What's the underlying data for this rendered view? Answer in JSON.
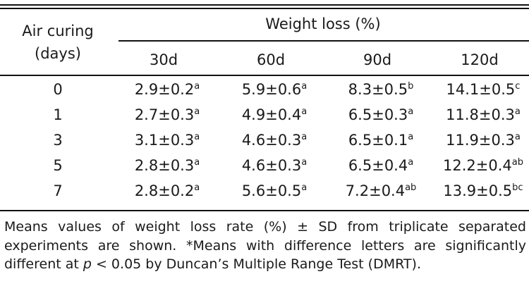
{
  "table": {
    "row_header": [
      "Air curing",
      "(days)"
    ],
    "group_header": "Weight loss (%)",
    "columns": [
      "30d",
      "60d",
      "90d",
      "120d"
    ],
    "rows": [
      {
        "day": "0",
        "cells": [
          [
            "2.9±0.2",
            "a"
          ],
          [
            "5.9±0.6",
            "a"
          ],
          [
            "8.3±0.5",
            "b"
          ],
          [
            "14.1±0.5",
            "c"
          ]
        ]
      },
      {
        "day": "1",
        "cells": [
          [
            "2.7±0.3",
            "a"
          ],
          [
            "4.9±0.4",
            "a"
          ],
          [
            "6.5±0.3",
            "a"
          ],
          [
            "11.8±0.3",
            "a"
          ]
        ]
      },
      {
        "day": "3",
        "cells": [
          [
            "3.1±0.3",
            "a"
          ],
          [
            "4.6±0.3",
            "a"
          ],
          [
            "6.5±0.1",
            "a"
          ],
          [
            "11.9±0.3",
            "a"
          ]
        ]
      },
      {
        "day": "5",
        "cells": [
          [
            "2.8±0.3",
            "a"
          ],
          [
            "4.6±0.3",
            "a"
          ],
          [
            "6.5±0.4",
            "a"
          ],
          [
            "12.2±0.4",
            "ab"
          ]
        ]
      },
      {
        "day": "7",
        "cells": [
          [
            "2.8±0.2",
            "a"
          ],
          [
            "5.6±0.5",
            "a"
          ],
          [
            "7.2±0.4",
            "ab"
          ],
          [
            "13.9±0.5",
            "bc"
          ]
        ]
      }
    ]
  },
  "footnote": {
    "part1": "Means values of weight loss rate (%) ± SD from triplicate separated experiments are shown. *Means with difference letters are significantly different at ",
    "p": "p",
    "part2": " < 0.05 by Duncan’s Multiple Range Test (DMRT)."
  }
}
